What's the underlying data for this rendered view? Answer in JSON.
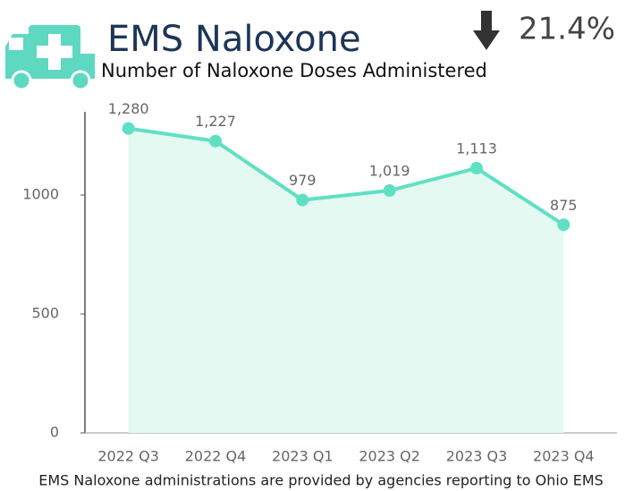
{
  "chart_data": {
    "type": "line",
    "title": "EMS Naloxone",
    "change": "21.4%",
    "subtitle": "Number of Naloxone Doses Administered",
    "note": "EMS Naloxone administrations are provided by agencies reporting to Ohio EMS",
    "categories": [
      "2022 Q3",
      "2022 Q4",
      "2023 Q1",
      "2023 Q2",
      "2023 Q3",
      "2023 Q4"
    ],
    "values": [
      1280,
      1227,
      979,
      1019,
      1113,
      875
    ],
    "value_labels": [
      "1,280",
      "1,227",
      "979",
      "1,019",
      "1,113",
      "875"
    ],
    "color": "#5fe0c3",
    "area_color": "#e3f9f2",
    "ylim": [
      0,
      1350
    ],
    "yticks": [
      0,
      500,
      1000
    ]
  }
}
